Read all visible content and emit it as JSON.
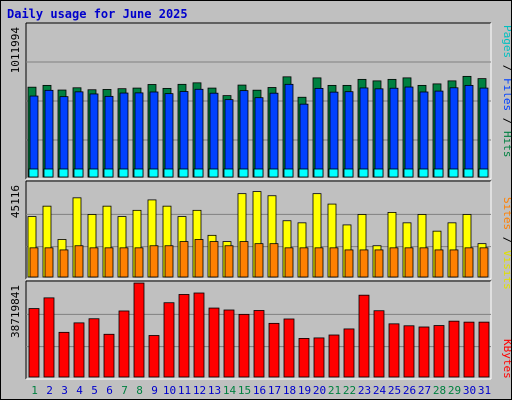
{
  "title": "Daily usage for June 2025",
  "colors": {
    "background": "#c0c0c0",
    "hits": "#008040",
    "hits_light": "#00a060",
    "files": "#0040ff",
    "pages": "#00ffff",
    "visits": "#ffff00",
    "sites": "#ff8000",
    "kbytes": "#ff0000",
    "title": "#0000cc",
    "weekend_day": "#008040",
    "weekday": "#0000cc"
  },
  "legends": {
    "top": [
      {
        "text": "Pages",
        "color": "#00c0c0"
      },
      {
        "text": " / ",
        "color": "#000000"
      },
      {
        "text": "Files",
        "color": "#0040ff"
      },
      {
        "text": " / ",
        "color": "#000000"
      },
      {
        "text": "Hits",
        "color": "#008040"
      }
    ],
    "middle": [
      {
        "text": "Sites",
        "color": "#ff8000"
      },
      {
        "text": " / ",
        "color": "#000000"
      },
      {
        "text": "Visits",
        "color": "#e0e000"
      }
    ],
    "bottom": [
      {
        "text": "KBytes",
        "color": "#ff0000"
      }
    ]
  },
  "chart_data": [
    {
      "type": "bar",
      "panel": "hits-files-pages",
      "max_label": "1011994",
      "ylim": [
        0,
        1011994
      ],
      "categories": [
        "1",
        "2",
        "3",
        "4",
        "5",
        "6",
        "7",
        "8",
        "9",
        "10",
        "11",
        "12",
        "13",
        "14",
        "15",
        "16",
        "17",
        "18",
        "19",
        "20",
        "21",
        "22",
        "23",
        "24",
        "25",
        "26",
        "27",
        "28",
        "29",
        "30",
        "31"
      ],
      "series": [
        {
          "name": "Hits",
          "values": [
            598000,
            610000,
            579000,
            594000,
            581000,
            583000,
            588000,
            592000,
            616000,
            590000,
            617000,
            627000,
            592000,
            542000,
            612000,
            578000,
            596000,
            667000,
            531000,
            660000,
            610000,
            610000,
            650000,
            640000,
            650000,
            660000,
            610000,
            620000,
            640000,
            670000,
            655000
          ]
        },
        {
          "name": "Files",
          "values": [
            539000,
            577000,
            535000,
            567000,
            553000,
            537000,
            559000,
            560000,
            566000,
            555000,
            569000,
            584000,
            558000,
            515000,
            575000,
            528000,
            558000,
            617000,
            485000,
            590000,
            565000,
            568000,
            593000,
            587000,
            591000,
            599000,
            566000,
            572000,
            594000,
            610000,
            592000
          ]
        },
        {
          "name": "Pages",
          "values": [
            0,
            0,
            0,
            0,
            0,
            0,
            0,
            0,
            0,
            0,
            0,
            0,
            0,
            0,
            0,
            0,
            0,
            0,
            0,
            0,
            0,
            0,
            0,
            0,
            0,
            0,
            0,
            0,
            0,
            0,
            0
          ]
        }
      ]
    },
    {
      "type": "bar",
      "panel": "visits-sites",
      "max_label": "45116",
      "ylim": [
        0,
        45116
      ],
      "categories": [
        "1",
        "2",
        "3",
        "4",
        "5",
        "6",
        "7",
        "8",
        "9",
        "10",
        "11",
        "12",
        "13",
        "14",
        "15",
        "16",
        "17",
        "18",
        "19",
        "20",
        "21",
        "22",
        "23",
        "24",
        "25",
        "26",
        "27",
        "28",
        "29",
        "30",
        "31"
      ],
      "series": [
        {
          "name": "Visits",
          "values": [
            29000,
            34000,
            18000,
            38000,
            30000,
            34000,
            29000,
            32000,
            37000,
            34000,
            29000,
            32000,
            20000,
            17000,
            40000,
            41000,
            39000,
            27000,
            26000,
            40000,
            35000,
            25000,
            30000,
            15000,
            31000,
            26000,
            30000,
            22000,
            26000,
            30000,
            16000
          ]
        },
        {
          "name": "Sites",
          "values": [
            14000,
            14000,
            13000,
            15000,
            14000,
            14000,
            14000,
            14000,
            15000,
            15000,
            17000,
            18000,
            17000,
            15000,
            17000,
            16000,
            16000,
            14000,
            14000,
            14000,
            14000,
            13000,
            13000,
            13000,
            14000,
            14000,
            14000,
            13000,
            13000,
            14000,
            14000
          ]
        }
      ]
    },
    {
      "type": "bar",
      "panel": "kbytes",
      "max_label": "38719841",
      "ylim": [
        0,
        38719841
      ],
      "categories": [
        "1",
        "2",
        "3",
        "4",
        "5",
        "6",
        "7",
        "8",
        "9",
        "10",
        "11",
        "12",
        "13",
        "14",
        "15",
        "16",
        "17",
        "18",
        "19",
        "20",
        "21",
        "22",
        "23",
        "24",
        "25",
        "26",
        "27",
        "28",
        "29",
        "30",
        "31"
      ],
      "series": [
        {
          "name": "KBytes",
          "values": [
            28200000,
            32600000,
            18400000,
            22300000,
            24000000,
            17600000,
            27200000,
            38700000,
            17100000,
            30600000,
            34000000,
            34600000,
            28400000,
            27600000,
            25800000,
            27400000,
            22100000,
            23900000,
            15900000,
            16100000,
            17300000,
            19800000,
            33700000,
            27300000,
            21900000,
            21100000,
            20600000,
            21200000,
            23000000,
            22600000,
            22600000
          ]
        }
      ]
    }
  ],
  "day_labels": [
    {
      "label": "1",
      "weekend": true
    },
    {
      "label": "2",
      "weekend": false
    },
    {
      "label": "3",
      "weekend": false
    },
    {
      "label": "4",
      "weekend": false
    },
    {
      "label": "5",
      "weekend": false
    },
    {
      "label": "6",
      "weekend": false
    },
    {
      "label": "7",
      "weekend": true
    },
    {
      "label": "8",
      "weekend": true
    },
    {
      "label": "9",
      "weekend": false
    },
    {
      "label": "10",
      "weekend": false
    },
    {
      "label": "11",
      "weekend": false
    },
    {
      "label": "12",
      "weekend": false
    },
    {
      "label": "13",
      "weekend": false
    },
    {
      "label": "14",
      "weekend": true
    },
    {
      "label": "15",
      "weekend": true
    },
    {
      "label": "16",
      "weekend": false
    },
    {
      "label": "17",
      "weekend": false
    },
    {
      "label": "18",
      "weekend": false
    },
    {
      "label": "19",
      "weekend": false
    },
    {
      "label": "20",
      "weekend": false
    },
    {
      "label": "21",
      "weekend": true
    },
    {
      "label": "22",
      "weekend": true
    },
    {
      "label": "23",
      "weekend": false
    },
    {
      "label": "24",
      "weekend": false
    },
    {
      "label": "25",
      "weekend": false
    },
    {
      "label": "26",
      "weekend": false
    },
    {
      "label": "27",
      "weekend": false
    },
    {
      "label": "28",
      "weekend": true
    },
    {
      "label": "29",
      "weekend": true
    },
    {
      "label": "30",
      "weekend": false
    },
    {
      "label": "31",
      "weekend": false
    }
  ]
}
